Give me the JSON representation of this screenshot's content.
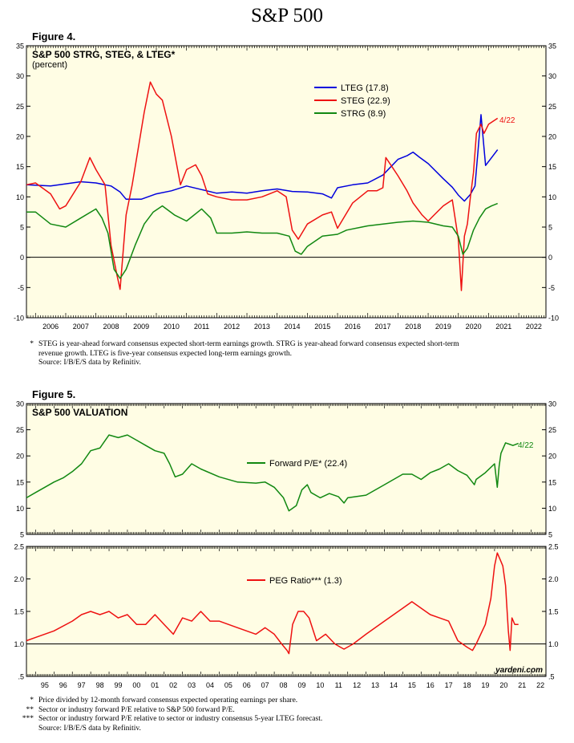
{
  "page_title": "S&P 500",
  "figure4": {
    "label": "Figure 4.",
    "notes": [
      {
        "marker": "*",
        "text": "STEG is year-ahead forward consensus expected short-term earnings growth. STRG is year-ahead forward consensus expected short-term"
      },
      {
        "marker": "",
        "text": "revenue growth. LTEG is five-year consensus expected long-term earnings growth."
      },
      {
        "marker": "",
        "text": "Source: I/B/E/S data by Refinitiv."
      }
    ]
  },
  "figure5": {
    "label": "Figure 5.",
    "notes": [
      {
        "marker": "*",
        "text": "Price divided by 12-month forward consensus expected operating earnings per share."
      },
      {
        "marker": "**",
        "text": "Sector or industry forward P/E relative to S&P 500 forward P/E."
      },
      {
        "marker": "***",
        "text": "Sector or industry forward P/E relative to sector or industry consensus 5-year LTEG forecast."
      },
      {
        "marker": "",
        "text": "Source: I/B/E/S data by Refinitiv."
      }
    ]
  },
  "watermark": "yardeni.com",
  "colors": {
    "blue": "#0000dd",
    "red": "#ee1111",
    "green": "#118811",
    "panel_bg": "#fffde4"
  },
  "chart_data": [
    {
      "type": "line",
      "title": "S&P 500 STRG, STEG, & LTEG*",
      "subtitle": "(percent)",
      "ylim": [
        -10,
        35
      ],
      "yticks": [
        -10,
        -5,
        0,
        5,
        10,
        15,
        20,
        25,
        30,
        35
      ],
      "x_range": [
        2005.7,
        2022.9
      ],
      "x_tick_labels": [
        "2006",
        "2007",
        "2008",
        "2009",
        "2010",
        "2011",
        "2012",
        "2013",
        "2014",
        "2015",
        "2016",
        "2017",
        "2018",
        "2019",
        "2020",
        "2021",
        "2022"
      ],
      "annotation": "4/22",
      "legend": [
        "LTEG (17.8)",
        "STEG (22.9)",
        "STRG (8.9)"
      ],
      "series": [
        {
          "name": "LTEG",
          "color": "#0000dd",
          "x": [
            2005.7,
            2006.5,
            2007.5,
            2008.0,
            2008.5,
            2008.8,
            2009.0,
            2009.5,
            2010.0,
            2010.5,
            2011.0,
            2011.5,
            2012.0,
            2012.5,
            2013.0,
            2013.5,
            2014.0,
            2014.5,
            2015.0,
            2015.5,
            2015.8,
            2016.0,
            2016.5,
            2017.0,
            2017.5,
            2018.0,
            2018.3,
            2018.5,
            2018.7,
            2019.0,
            2019.5,
            2019.8,
            2020.0,
            2020.2,
            2020.4,
            2020.55,
            2020.65,
            2020.75,
            2020.9,
            2021.1,
            2021.3
          ],
          "y": [
            12.0,
            11.8,
            12.5,
            12.3,
            11.8,
            10.8,
            9.6,
            9.6,
            10.5,
            11.0,
            11.8,
            11.2,
            10.6,
            10.8,
            10.6,
            11.0,
            11.3,
            10.9,
            10.8,
            10.5,
            9.8,
            11.5,
            12.0,
            12.3,
            13.6,
            16.2,
            16.8,
            17.4,
            16.6,
            15.5,
            13.0,
            11.6,
            10.3,
            9.3,
            10.4,
            11.8,
            17.5,
            23.6,
            15.2,
            16.5,
            17.8
          ]
        },
        {
          "name": "STEG",
          "color": "#ee1111",
          "x": [
            2005.7,
            2006.0,
            2006.5,
            2006.8,
            2007.0,
            2007.5,
            2007.8,
            2008.0,
            2008.3,
            2008.5,
            2008.7,
            2008.8,
            2009.0,
            2009.2,
            2009.4,
            2009.6,
            2009.8,
            2010.0,
            2010.2,
            2010.5,
            2010.8,
            2011.0,
            2011.3,
            2011.5,
            2011.7,
            2012.0,
            2012.5,
            2013.0,
            2013.5,
            2014.0,
            2014.3,
            2014.5,
            2014.7,
            2015.0,
            2015.5,
            2015.8,
            2016.0,
            2016.5,
            2017.0,
            2017.3,
            2017.5,
            2017.6,
            2017.8,
            2018.0,
            2018.3,
            2018.5,
            2018.8,
            2019.0,
            2019.2,
            2019.5,
            2019.8,
            2020.0,
            2020.1,
            2020.2,
            2020.3,
            2020.4,
            2020.5,
            2020.6,
            2020.75,
            2020.85,
            2021.0,
            2021.3
          ],
          "y": [
            12.0,
            12.3,
            10.5,
            8.0,
            8.5,
            12.5,
            16.5,
            14.5,
            12.0,
            2.0,
            -3.0,
            -5.3,
            7.0,
            12.0,
            18.0,
            24.0,
            29.0,
            27.0,
            26.0,
            20.0,
            12.0,
            14.5,
            15.3,
            13.5,
            10.5,
            10.0,
            9.5,
            9.5,
            10.0,
            11.0,
            10.0,
            4.5,
            3.0,
            5.5,
            7.0,
            7.5,
            4.8,
            9.0,
            11.0,
            11.0,
            11.5,
            16.5,
            15.0,
            13.5,
            11.0,
            9.0,
            7.0,
            6.0,
            7.0,
            8.5,
            9.5,
            3.0,
            -5.5,
            3.5,
            5.5,
            10.0,
            14.0,
            20.5,
            22.0,
            20.5,
            22.0,
            23.0
          ]
        },
        {
          "name": "STRG",
          "color": "#118811",
          "x": [
            2005.7,
            2006.0,
            2006.5,
            2007.0,
            2007.5,
            2008.0,
            2008.2,
            2008.4,
            2008.6,
            2008.8,
            2009.0,
            2009.3,
            2009.6,
            2009.9,
            2010.2,
            2010.6,
            2011.0,
            2011.5,
            2011.8,
            2012.0,
            2012.5,
            2013.0,
            2013.5,
            2014.0,
            2014.4,
            2014.6,
            2014.8,
            2015.0,
            2015.5,
            2016.0,
            2016.3,
            2016.8,
            2017.0,
            2017.5,
            2018.0,
            2018.5,
            2019.0,
            2019.5,
            2019.8,
            2020.0,
            2020.15,
            2020.3,
            2020.5,
            2020.7,
            2020.9,
            2021.1,
            2021.3
          ],
          "y": [
            7.5,
            7.5,
            5.5,
            5.0,
            6.5,
            8.0,
            6.5,
            4.0,
            -2.0,
            -3.5,
            -2.0,
            2.0,
            5.5,
            7.5,
            8.5,
            7.0,
            6.0,
            8.0,
            6.5,
            4.0,
            4.0,
            4.2,
            4.0,
            4.0,
            3.5,
            1.0,
            0.5,
            1.8,
            3.5,
            3.8,
            4.5,
            5.0,
            5.2,
            5.5,
            5.8,
            6.0,
            5.8,
            5.2,
            5.0,
            3.5,
            0.5,
            1.5,
            4.5,
            6.5,
            8.0,
            8.5,
            8.9
          ]
        }
      ]
    },
    {
      "type": "line",
      "title": "S&P 500  VALUATION",
      "ylim": [
        5,
        30
      ],
      "yticks": [
        5,
        10,
        15,
        20,
        25,
        30
      ],
      "x_range": [
        1994.5,
        2022.8
      ],
      "annotation": "4/22",
      "legend": [
        "Forward P/E* (22.4)"
      ],
      "series": [
        {
          "name": "Forward P/E",
          "color": "#118811",
          "x": [
            1994.5,
            1995.0,
            1995.5,
            1996.0,
            1996.5,
            1997.0,
            1997.5,
            1998.0,
            1998.5,
            1999.0,
            1999.5,
            2000.0,
            2000.5,
            2001.0,
            2001.5,
            2002.0,
            2002.3,
            2002.6,
            2003.0,
            2003.5,
            2004.0,
            2005.0,
            2006.0,
            2007.0,
            2007.5,
            2008.0,
            2008.5,
            2008.8,
            2009.2,
            2009.5,
            2009.8,
            2010.0,
            2010.5,
            2011.0,
            2011.5,
            2011.8,
            2012.0,
            2013.0,
            2014.0,
            2015.0,
            2015.5,
            2016.0,
            2016.5,
            2017.0,
            2017.5,
            2018.0,
            2018.5,
            2018.9,
            2019.0,
            2019.5,
            2020.0,
            2020.15,
            2020.25,
            2020.35,
            2020.6,
            2021.0,
            2021.3
          ],
          "y": [
            12.0,
            13.0,
            14.0,
            15.0,
            15.8,
            17.0,
            18.5,
            21.0,
            21.5,
            24.0,
            23.5,
            24.0,
            23.0,
            22.0,
            21.0,
            20.5,
            18.5,
            16.0,
            16.5,
            18.5,
            17.5,
            16.0,
            15.0,
            14.8,
            15.0,
            14.0,
            12.0,
            9.5,
            10.5,
            13.5,
            14.5,
            13.0,
            12.0,
            12.8,
            12.2,
            11.0,
            12.0,
            12.5,
            14.5,
            16.5,
            16.5,
            15.5,
            16.8,
            17.5,
            18.5,
            17.2,
            16.3,
            14.5,
            15.5,
            16.8,
            18.5,
            14.0,
            18.0,
            20.5,
            22.5,
            22.0,
            22.4
          ]
        }
      ]
    },
    {
      "type": "line",
      "title": "",
      "ylim": [
        0.5,
        2.5
      ],
      "yticks": [
        0.5,
        1.0,
        1.5,
        2.0,
        2.5
      ],
      "ytick_labels": [
        ".5",
        "1.0",
        "1.5",
        "2.0",
        "2.5"
      ],
      "x_range": [
        1994.5,
        2022.8
      ],
      "x_tick_labels": [
        "95",
        "96",
        "97",
        "98",
        "99",
        "00",
        "01",
        "02",
        "03",
        "04",
        "05",
        "06",
        "07",
        "08",
        "09",
        "10",
        "11",
        "12",
        "13",
        "14",
        "15",
        "16",
        "17",
        "18",
        "19",
        "20",
        "21",
        "22"
      ],
      "legend": [
        "PEG Ratio*** (1.3)"
      ],
      "series": [
        {
          "name": "PEG Ratio",
          "color": "#ee1111",
          "x": [
            1994.5,
            1995.0,
            1996.0,
            1997.0,
            1997.5,
            1998.0,
            1998.5,
            1999.0,
            1999.5,
            2000.0,
            2000.5,
            2001.0,
            2001.5,
            2002.0,
            2002.5,
            2003.0,
            2003.5,
            2004.0,
            2004.5,
            2005.0,
            2006.0,
            2007.0,
            2007.5,
            2008.0,
            2008.4,
            2008.7,
            2008.8,
            2009.0,
            2009.3,
            2009.6,
            2009.9,
            2010.3,
            2010.8,
            2011.3,
            2011.6,
            2011.8,
            2012.3,
            2013.0,
            2014.0,
            2015.0,
            2015.5,
            2016.0,
            2016.5,
            2017.0,
            2017.5,
            2018.0,
            2018.5,
            2018.8,
            2019.0,
            2019.5,
            2019.8,
            2020.0,
            2020.15,
            2020.3,
            2020.45,
            2020.6,
            2020.75,
            2020.85,
            2020.95,
            2021.1,
            2021.3
          ],
          "y": [
            1.05,
            1.1,
            1.2,
            1.35,
            1.45,
            1.5,
            1.45,
            1.5,
            1.4,
            1.45,
            1.3,
            1.3,
            1.45,
            1.3,
            1.15,
            1.4,
            1.35,
            1.5,
            1.35,
            1.35,
            1.25,
            1.15,
            1.25,
            1.15,
            1.0,
            0.9,
            0.85,
            1.3,
            1.5,
            1.5,
            1.4,
            1.05,
            1.15,
            1.0,
            0.95,
            0.92,
            1.0,
            1.15,
            1.35,
            1.55,
            1.65,
            1.55,
            1.45,
            1.4,
            1.35,
            1.05,
            0.95,
            0.9,
            1.0,
            1.3,
            1.7,
            2.2,
            2.4,
            2.3,
            2.2,
            1.9,
            1.2,
            0.9,
            1.4,
            1.3,
            1.3
          ]
        }
      ]
    }
  ]
}
